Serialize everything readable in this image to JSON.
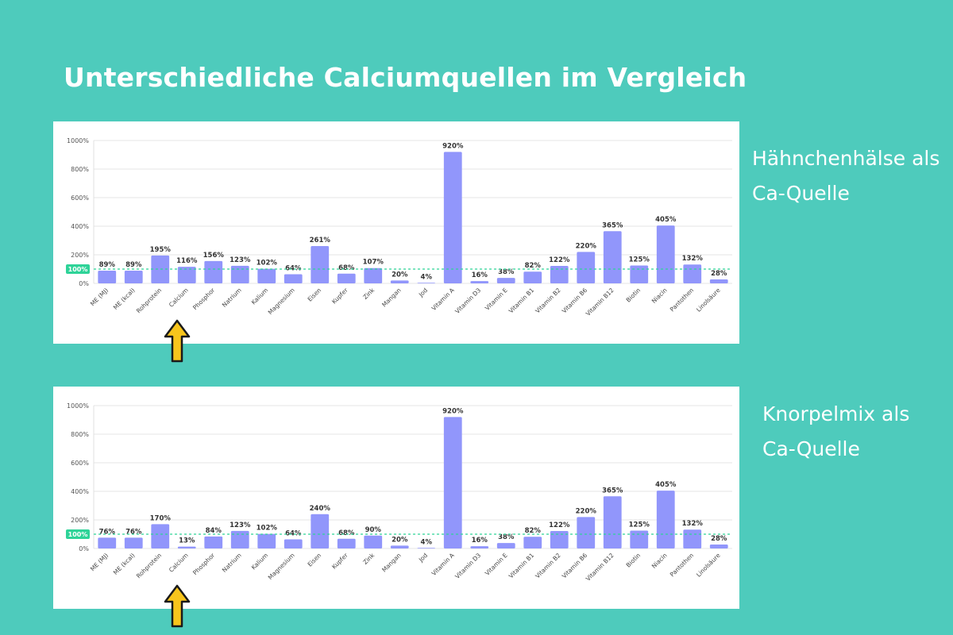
{
  "title": "Unterschiedliche Calciumquellen im Vergleich",
  "colors": {
    "background": "#4ecbbc",
    "bar": "#9196fb",
    "reference": "#2ed398",
    "arrow": "#f8c51c"
  },
  "charts": [
    {
      "caption_line1": "Hähnchenhälse als",
      "caption_line2": "Ca-Quelle"
    },
    {
      "caption_line1": "Knorpelmix als",
      "caption_line2": "Ca-Quelle"
    }
  ],
  "chart_data": [
    {
      "type": "bar",
      "categories": [
        "ME (MJ)",
        "ME (kcal)",
        "Rohprotein",
        "Calcium",
        "Phosphor",
        "Natrium",
        "Kalium",
        "Magnesium",
        "Eisen",
        "Kupfer",
        "Zink",
        "Mangan",
        "Jod",
        "Vitamin A",
        "Vitamin D3",
        "Vitamin E",
        "Vitamin B1",
        "Vitamin B2",
        "Vitamin B6",
        "Vitamin B12",
        "Biotin",
        "Niacin",
        "Pantothen",
        "Linolsäure"
      ],
      "values": [
        89,
        89,
        195,
        116,
        156,
        123,
        102,
        64,
        261,
        68,
        107,
        20,
        4,
        920,
        16,
        38,
        82,
        122,
        220,
        365,
        125,
        405,
        132,
        28
      ],
      "value_labels": [
        "89%",
        "89%",
        "195%",
        "116%",
        "156%",
        "123%",
        "102%",
        "64%",
        "261%",
        "68%",
        "107%",
        "20%",
        "4%",
        "920%",
        "16%",
        "38%",
        "82%",
        "122%",
        "220%",
        "365%",
        "125%",
        "405%",
        "132%",
        "28%"
      ],
      "yticks": [
        0,
        200,
        400,
        600,
        800,
        1000
      ],
      "ytick_labels": [
        "0%",
        "200%",
        "400%",
        "600%",
        "800%",
        "1000%"
      ],
      "ylim": [
        0,
        1000
      ],
      "reference_value": 100,
      "reference_label": "100%",
      "highlight_category": "Calcium",
      "grid": true
    },
    {
      "type": "bar",
      "categories": [
        "ME (MJ)",
        "ME (kcal)",
        "Rohprotein",
        "Calcium",
        "Phosphor",
        "Natrium",
        "Kalium",
        "Magnesium",
        "Eisen",
        "Kupfer",
        "Zink",
        "Mangan",
        "Jod",
        "Vitamin A",
        "Vitamin D3",
        "Vitamin E",
        "Vitamin B1",
        "Vitamin B2",
        "Vitamin B6",
        "Vitamin B12",
        "Biotin",
        "Niacin",
        "Pantothen",
        "Linolsäure"
      ],
      "values": [
        76,
        76,
        170,
        13,
        84,
        123,
        102,
        64,
        240,
        68,
        90,
        20,
        4,
        920,
        16,
        38,
        82,
        122,
        220,
        365,
        125,
        405,
        132,
        28
      ],
      "value_labels": [
        "76%",
        "76%",
        "170%",
        "13%",
        "84%",
        "123%",
        "102%",
        "64%",
        "240%",
        "68%",
        "90%",
        "20%",
        "4%",
        "920%",
        "16%",
        "38%",
        "82%",
        "122%",
        "220%",
        "365%",
        "125%",
        "405%",
        "132%",
        "28%"
      ],
      "yticks": [
        0,
        200,
        400,
        600,
        800,
        1000
      ],
      "ytick_labels": [
        "0%",
        "200%",
        "400%",
        "600%",
        "800%",
        "1000%"
      ],
      "ylim": [
        0,
        1000
      ],
      "reference_value": 100,
      "reference_label": "100%",
      "highlight_category": "Calcium",
      "grid": true
    }
  ]
}
